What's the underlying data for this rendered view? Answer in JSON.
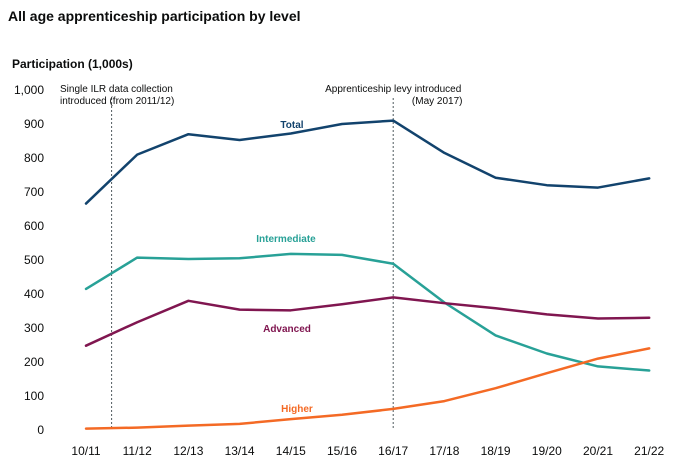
{
  "chart_data": {
    "type": "line",
    "title": "All age apprenticeship participation by level",
    "ylabel": "Participation (1,000s)",
    "xlabel": "",
    "ylim": [
      0,
      1000
    ],
    "yticks": [
      0,
      100,
      200,
      300,
      400,
      500,
      600,
      700,
      800,
      900,
      1000
    ],
    "ytick_labels": [
      "0",
      "100",
      "200",
      "300",
      "400",
      "500",
      "600",
      "700",
      "800",
      "900",
      "1,000"
    ],
    "categories": [
      "10/11",
      "11/12",
      "12/13",
      "13/14",
      "14/15",
      "15/16",
      "16/17",
      "17/18",
      "18/19",
      "19/20",
      "20/21",
      "21/22"
    ],
    "series": [
      {
        "name": "Total",
        "color": "#12436d",
        "label_at": 4,
        "label_offset": "above",
        "values": [
          666,
          810,
          870,
          853,
          872,
          900,
          910,
          815,
          742,
          720,
          713,
          740
        ]
      },
      {
        "name": "Intermediate",
        "color": "#28a197",
        "label_at": 4,
        "label_offset": "above",
        "values": [
          415,
          507,
          503,
          505,
          518,
          515,
          489,
          375,
          278,
          225,
          187,
          175
        ]
      },
      {
        "name": "Advanced",
        "color": "#801650",
        "label_at": 4,
        "label_offset": "below",
        "values": [
          248,
          317,
          380,
          354,
          352,
          370,
          390,
          373,
          358,
          340,
          328,
          330
        ]
      },
      {
        "name": "Higher",
        "color": "#f46a25",
        "label_at": 4,
        "label_offset": "above",
        "values": [
          4,
          7,
          13,
          18,
          32,
          45,
          62,
          85,
          123,
          167,
          210,
          240
        ]
      }
    ],
    "annotations": [
      {
        "at_index": 0.5,
        "lines": [
          "Single ILR data collection",
          "introduced (from 2011/12)"
        ],
        "anchor": "start"
      },
      {
        "at_index": 6,
        "lines": [
          "Apprenticeship levy introduced",
          "(May 2017)"
        ],
        "anchor": "middle"
      }
    ],
    "grid": false,
    "legend": "inline labels"
  }
}
